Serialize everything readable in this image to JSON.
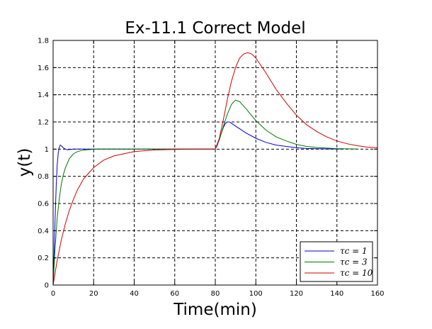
{
  "chart_data": {
    "type": "line",
    "title": "Ex-11.1 Correct Model",
    "xlabel": "Time(min)",
    "ylabel": "y(t)",
    "xlim": [
      0,
      160
    ],
    "ylim": [
      0,
      1.8
    ],
    "xticks": [
      0,
      20,
      40,
      60,
      80,
      100,
      120,
      140,
      160
    ],
    "yticks": [
      0,
      0.2,
      0.4,
      0.6,
      0.8,
      1,
      1.2,
      1.4,
      1.6,
      1.8
    ],
    "grid": true,
    "legend_position": "bottom-right",
    "series": [
      {
        "name": "τc = 1",
        "color": "#0000cc",
        "x": [
          0,
          0.5,
          1,
          1.5,
          2,
          2.5,
          3,
          3.5,
          4,
          5,
          6,
          7,
          8,
          10,
          12,
          15,
          20,
          40,
          60,
          80,
          81,
          82,
          83,
          84,
          85,
          86,
          87,
          88,
          90,
          92,
          95,
          100,
          105,
          110,
          115,
          120,
          125,
          130,
          135,
          140,
          143
        ],
        "y": [
          0,
          0.24,
          0.5,
          0.72,
          0.88,
          0.97,
          1.01,
          1.03,
          1.025,
          1.01,
          1.0,
          0.995,
          0.997,
          1.0,
          1.0,
          1.0,
          1.0,
          1.0,
          1.0,
          1.0,
          1.03,
          1.07,
          1.12,
          1.16,
          1.19,
          1.2,
          1.2,
          1.19,
          1.17,
          1.15,
          1.12,
          1.08,
          1.05,
          1.03,
          1.02,
          1.01,
          1.005,
          1.003,
          1.002,
          1.001,
          1.0
        ]
      },
      {
        "name": "τc = 3",
        "color": "#007700",
        "x": [
          0,
          1,
          2,
          3,
          4,
          5,
          6,
          8,
          10,
          12,
          15,
          20,
          25,
          30,
          40,
          60,
          80,
          82,
          84,
          86,
          88,
          90,
          92,
          95,
          100,
          105,
          110,
          115,
          120,
          125,
          130,
          140,
          150
        ],
        "y": [
          0,
          0.28,
          0.49,
          0.63,
          0.74,
          0.81,
          0.86,
          0.93,
          0.965,
          0.982,
          0.993,
          0.999,
          1.0,
          1.0,
          1.0,
          1.0,
          1.0,
          1.07,
          1.17,
          1.26,
          1.33,
          1.36,
          1.35,
          1.3,
          1.21,
          1.14,
          1.09,
          1.06,
          1.035,
          1.02,
          1.012,
          1.004,
          1.001
        ]
      },
      {
        "name": "τc = 10",
        "color": "#cc0000",
        "x": [
          0,
          2,
          4,
          6,
          8,
          10,
          12,
          15,
          20,
          25,
          30,
          40,
          50,
          60,
          70,
          80,
          82,
          84,
          86,
          88,
          90,
          92,
          94,
          96,
          98,
          100,
          105,
          110,
          115,
          120,
          125,
          130,
          135,
          140,
          145,
          150,
          155,
          160
        ],
        "y": [
          0,
          0.18,
          0.33,
          0.45,
          0.55,
          0.63,
          0.7,
          0.78,
          0.865,
          0.92,
          0.95,
          0.982,
          0.994,
          0.998,
          0.999,
          1.0,
          1.08,
          1.22,
          1.37,
          1.5,
          1.6,
          1.67,
          1.7,
          1.71,
          1.7,
          1.67,
          1.56,
          1.44,
          1.34,
          1.25,
          1.18,
          1.13,
          1.09,
          1.06,
          1.04,
          1.025,
          1.015,
          1.01
        ]
      }
    ]
  }
}
